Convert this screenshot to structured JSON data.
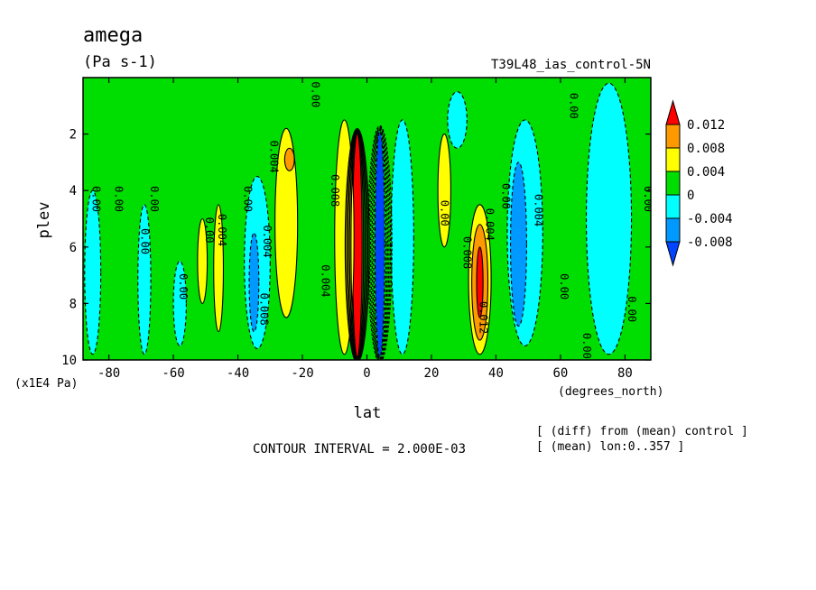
{
  "chart_data": {
    "type": "heatmap",
    "title": "amega",
    "units": "(Pa s-1)",
    "dataset": "T39L48_ias_control-5N",
    "xlabel": "lat",
    "xunits": "(degrees_north)",
    "ylabel": "plev",
    "yunits": "(x1E4 Pa)",
    "xlim": [
      -88,
      88
    ],
    "ylim": [
      10,
      0
    ],
    "xticks": [
      "-80",
      "-60",
      "-40",
      "-20",
      "0",
      "20",
      "40",
      "60",
      "80"
    ],
    "yticks": [
      "2",
      "4",
      "6",
      "8",
      "10"
    ],
    "contour_interval_text": "CONTOUR INTERVAL = 2.000E-03",
    "notes": [
      "[ (diff) from (mean) control ]",
      "[ (mean) lon:0..357 ]"
    ],
    "colorbar": {
      "labels": [
        "0.012",
        "0.008",
        "0.004",
        "0",
        "-0.004",
        "-0.008"
      ],
      "colors": [
        "#ff0000",
        "#ff9900",
        "#ffff00",
        "#00dd00",
        "#00ffff",
        "#0099ff",
        "#0044ff"
      ]
    },
    "background_color": "#00dd00",
    "features": [
      {
        "kind": "band",
        "lat": -3,
        "plev": [
          2.0,
          9.9
        ],
        "width": 3,
        "value": 0.014,
        "color": "#ff0000"
      },
      {
        "kind": "band",
        "lat": 4,
        "plev": [
          1.9,
          9.9
        ],
        "width": 3,
        "value": -0.014,
        "color": "#0044ff"
      },
      {
        "kind": "patch",
        "lat": -7,
        "plev": [
          1.5,
          9.8
        ],
        "width": 6,
        "value": 0.005,
        "color": "#ffff00"
      },
      {
        "kind": "patch",
        "lat": 11,
        "plev": [
          1.5,
          9.8
        ],
        "width": 7,
        "value": -0.005,
        "color": "#00ffff"
      },
      {
        "kind": "patch",
        "lat": -25,
        "plev": [
          1.8,
          8.5
        ],
        "width": 7,
        "value": 0.003,
        "color": "#ffff00"
      },
      {
        "kind": "patch",
        "lat": -24,
        "plev": [
          2.5,
          3.3
        ],
        "width": 3,
        "value": 0.008,
        "color": "#ff9900"
      },
      {
        "kind": "patch",
        "lat": -34,
        "plev": [
          3.5,
          9.6
        ],
        "width": 8,
        "value": -0.003,
        "color": "#00ffff"
      },
      {
        "kind": "patch",
        "lat": -35,
        "plev": [
          5.5,
          9.0
        ],
        "width": 3,
        "value": -0.006,
        "color": "#0099ff"
      },
      {
        "kind": "patch",
        "lat": -46,
        "plev": [
          4.5,
          9.0
        ],
        "width": 3,
        "value": 0.002,
        "color": "#ffff00"
      },
      {
        "kind": "patch",
        "lat": -51,
        "plev": [
          5.0,
          8.0
        ],
        "width": 3,
        "value": 0.003,
        "color": "#ffff00"
      },
      {
        "kind": "patch",
        "lat": -58,
        "plev": [
          6.5,
          9.5
        ],
        "width": 4,
        "value": -0.002,
        "color": "#00ffff"
      },
      {
        "kind": "patch",
        "lat": -85,
        "plev": [
          4.0,
          9.8
        ],
        "width": 5,
        "value": -0.002,
        "color": "#00ffff"
      },
      {
        "kind": "patch",
        "lat": -69,
        "plev": [
          4.5,
          9.8
        ],
        "width": 4,
        "value": -0.002,
        "color": "#00ffff"
      },
      {
        "kind": "patch",
        "lat": 24,
        "plev": [
          2.0,
          6.0
        ],
        "width": 4,
        "value": 0.003,
        "color": "#ffff00"
      },
      {
        "kind": "patch",
        "lat": 35,
        "plev": [
          4.5,
          9.8
        ],
        "width": 7,
        "value": 0.006,
        "color": "#ffff00"
      },
      {
        "kind": "patch",
        "lat": 35,
        "plev": [
          5.2,
          9.3
        ],
        "width": 5,
        "value": 0.009,
        "color": "#ff9900"
      },
      {
        "kind": "patch",
        "lat": 35,
        "plev": [
          6.0,
          8.5
        ],
        "width": 2,
        "value": 0.012,
        "color": "#ff0000"
      },
      {
        "kind": "patch",
        "lat": 49,
        "plev": [
          1.5,
          9.5
        ],
        "width": 11,
        "value": -0.004,
        "color": "#00ffff"
      },
      {
        "kind": "patch",
        "lat": 47,
        "plev": [
          3.0,
          8.8
        ],
        "width": 5,
        "value": -0.006,
        "color": "#0099ff"
      },
      {
        "kind": "patch",
        "lat": 75,
        "plev": [
          0.2,
          9.8
        ],
        "width": 14,
        "value": -0.002,
        "color": "#00ffff"
      },
      {
        "kind": "patch",
        "lat": 28,
        "plev": [
          0.5,
          2.5
        ],
        "width": 6,
        "value": -0.002,
        "color": "#00ffff"
      }
    ],
    "contour_labels": [
      {
        "lat": -85,
        "plev": 4.3,
        "text": "0.00"
      },
      {
        "lat": -78,
        "plev": 4.3,
        "text": "0.00"
      },
      {
        "lat": -67,
        "plev": 4.3,
        "text": "0.00"
      },
      {
        "lat": -70,
        "plev": 5.8,
        "text": "0.00"
      },
      {
        "lat": -58,
        "plev": 7.4,
        "text": "0.00"
      },
      {
        "lat": -50,
        "plev": 5.4,
        "text": "0.00"
      },
      {
        "lat": -46,
        "plev": 5.4,
        "text": "0.004"
      },
      {
        "lat": -38,
        "plev": 4.3,
        "text": "0.00"
      },
      {
        "lat": -32,
        "plev": 5.8,
        "text": "0.004"
      },
      {
        "lat": -33,
        "plev": 8.2,
        "text": "0.008"
      },
      {
        "lat": -30,
        "plev": 2.8,
        "text": "0.004"
      },
      {
        "lat": -14,
        "plev": 7.2,
        "text": "0.004"
      },
      {
        "lat": -11,
        "plev": 4.0,
        "text": "0.008"
      },
      {
        "lat": 23,
        "plev": 4.8,
        "text": "0.00"
      },
      {
        "lat": 30,
        "plev": 6.2,
        "text": "0.008"
      },
      {
        "lat": 37,
        "plev": 5.2,
        "text": "0.004"
      },
      {
        "lat": 42,
        "plev": 4.2,
        "text": "0.00"
      },
      {
        "lat": 35,
        "plev": 8.5,
        "text": "0.012"
      },
      {
        "lat": 52,
        "plev": 4.7,
        "text": "0.004"
      },
      {
        "lat": 60,
        "plev": 7.4,
        "text": "0.00"
      },
      {
        "lat": 67,
        "plev": 9.5,
        "text": "0.00"
      },
      {
        "lat": 81,
        "plev": 8.2,
        "text": "0.00"
      },
      {
        "lat": 86,
        "plev": 4.3,
        "text": "0.00"
      },
      {
        "lat": 63,
        "plev": 1.0,
        "text": "0.00"
      },
      {
        "lat": -17,
        "plev": 0.6,
        "text": "0.00"
      }
    ]
  }
}
